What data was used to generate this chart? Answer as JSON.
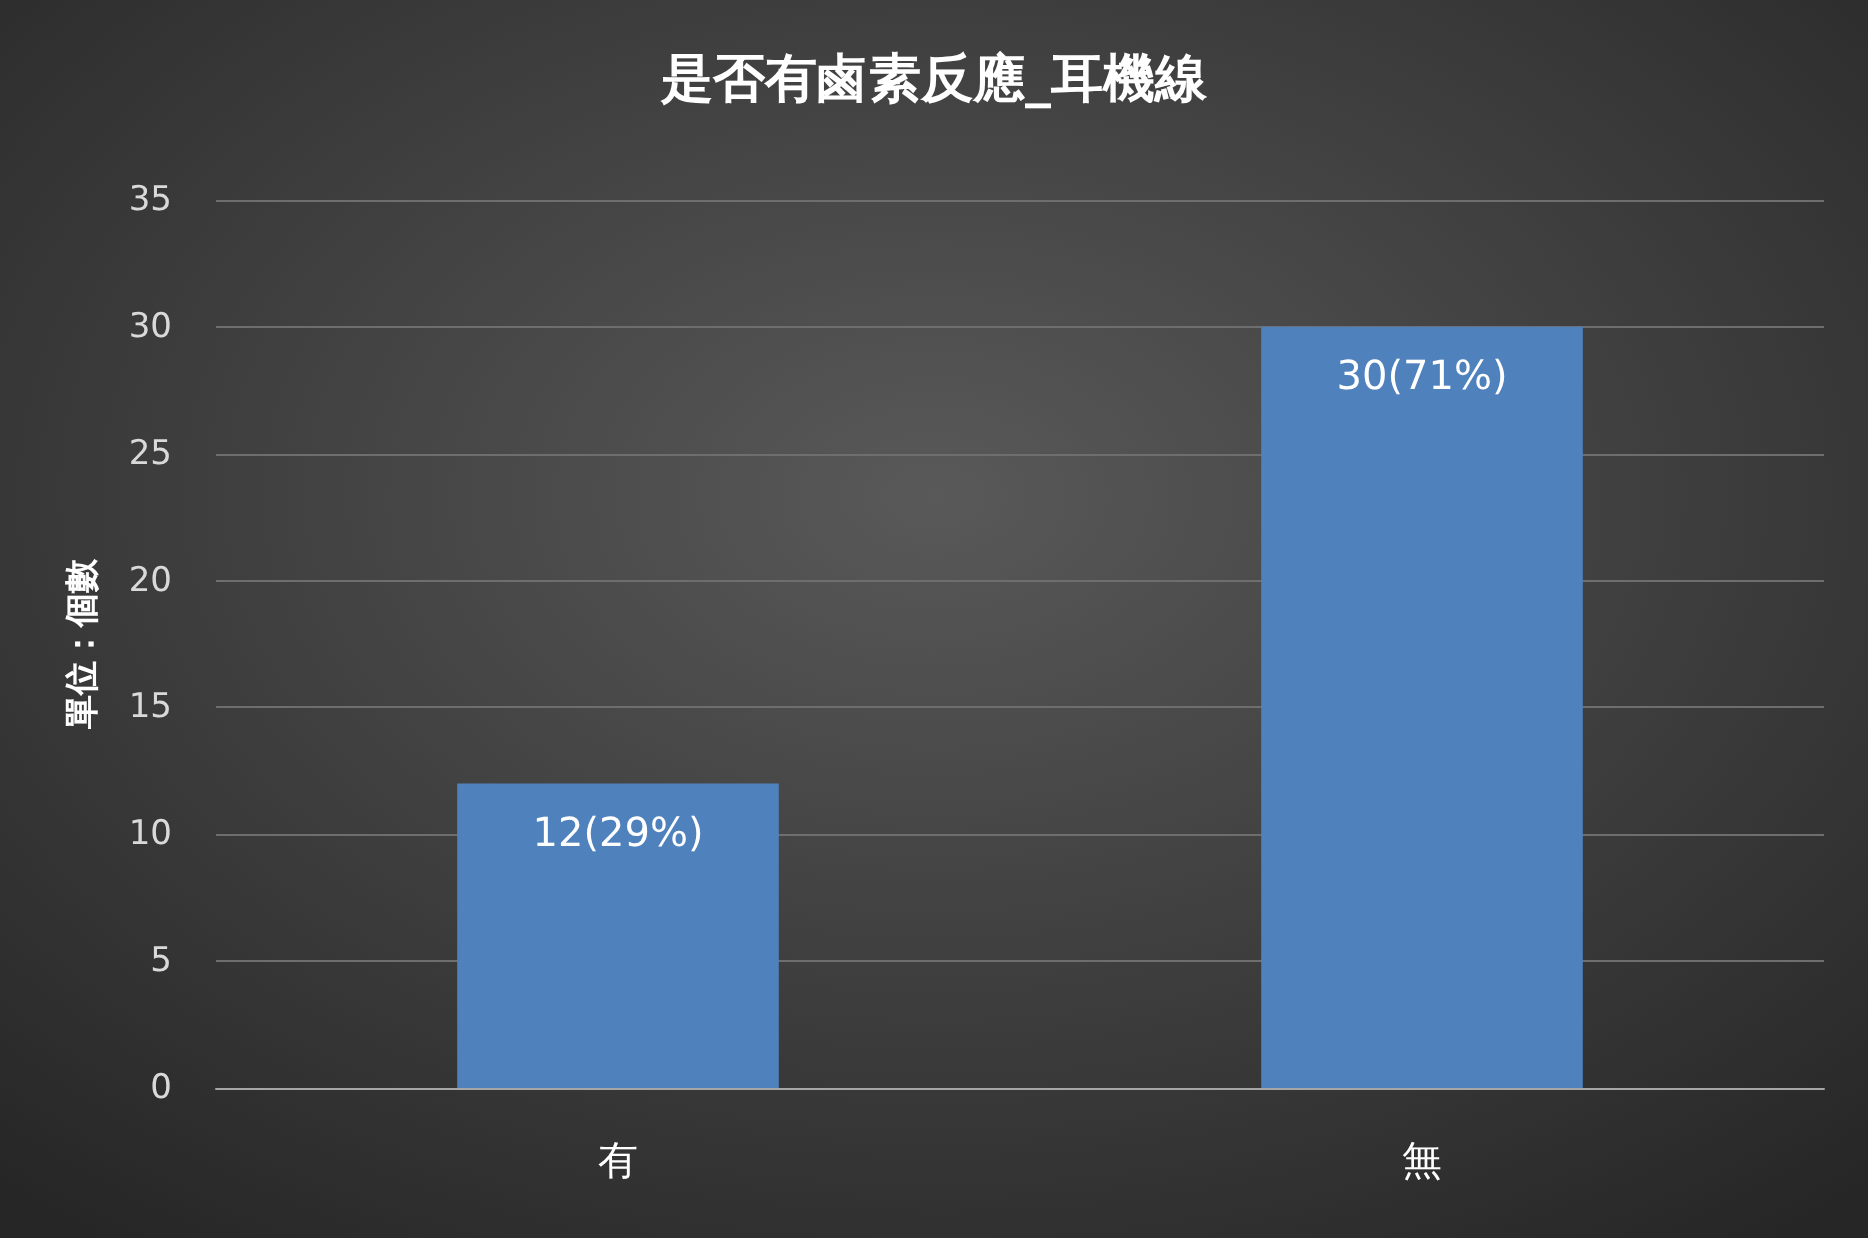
{
  "chart_data": {
    "type": "bar",
    "title": "是否有鹵素反應_耳機線",
    "ylabel": "單位：個數",
    "categories": [
      "有",
      "無"
    ],
    "values": [
      12,
      30
    ],
    "value_labels": [
      "12(29%)",
      "30(71%)"
    ],
    "color": "#4f81bd",
    "ylim": [
      0,
      35
    ],
    "yticks": [
      0,
      5,
      10,
      15,
      20,
      25,
      30,
      35
    ],
    "grid": "y"
  }
}
